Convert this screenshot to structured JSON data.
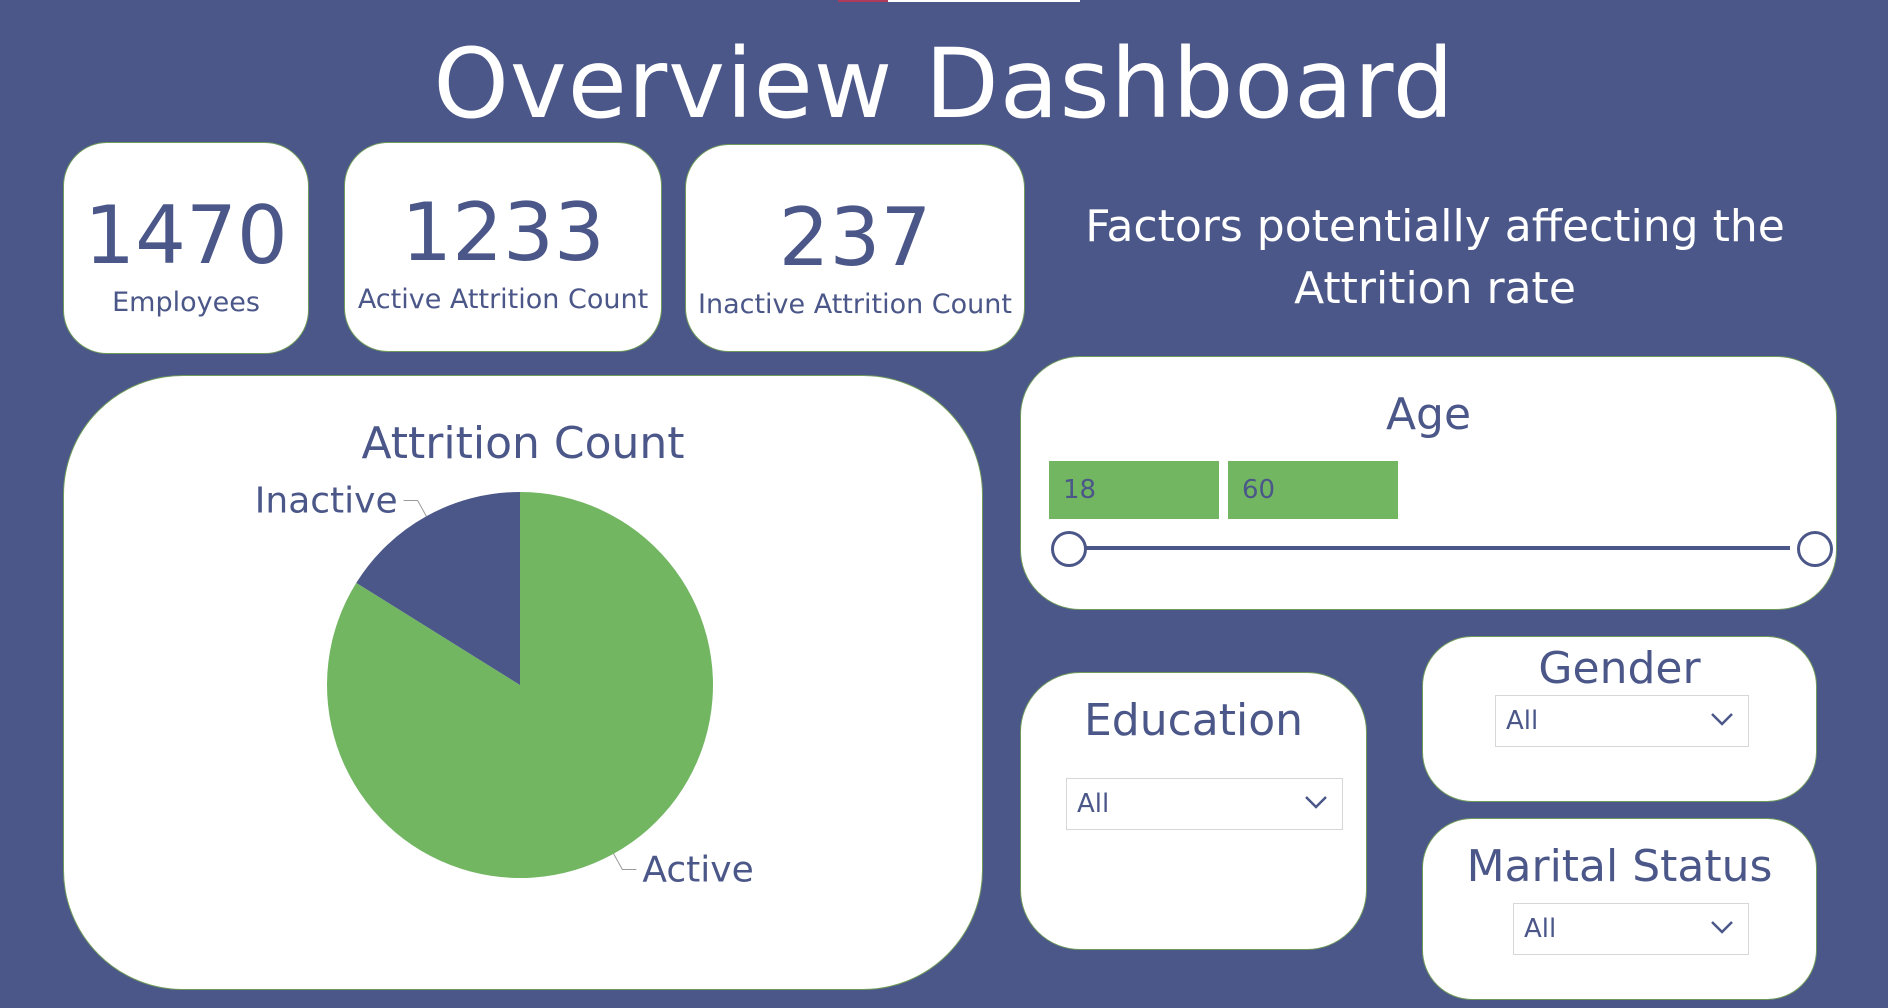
{
  "page": {
    "title": "Overview Dashboard"
  },
  "colors": {
    "background": "#4b5788",
    "accent_green": "#72b662",
    "card": "#ffffff",
    "text": "#4b5788"
  },
  "kpis": [
    {
      "value": "1470",
      "label": "Employees"
    },
    {
      "value": "1233",
      "label": "Active Attrition Count"
    },
    {
      "value": "237",
      "label": "Inactive Attrition Count"
    }
  ],
  "factors_heading": "Factors potentially affecting the Attrition rate",
  "chart_data": {
    "type": "pie",
    "title": "Attrition Count",
    "categories": [
      "Active",
      "Inactive"
    ],
    "values": [
      1233,
      237
    ],
    "colors": [
      "#72b662",
      "#4b5788"
    ],
    "legend": "none"
  },
  "age_slicer": {
    "title": "Age",
    "min": "18",
    "max": "60"
  },
  "education_slicer": {
    "title": "Education",
    "selected": "All"
  },
  "gender_slicer": {
    "title": "Gender",
    "selected": "All"
  },
  "marital_slicer": {
    "title": "Marital Status",
    "selected": "All"
  },
  "icons": {
    "dropdown": "chevron-down-icon",
    "slider_handle": "slider-handle"
  }
}
